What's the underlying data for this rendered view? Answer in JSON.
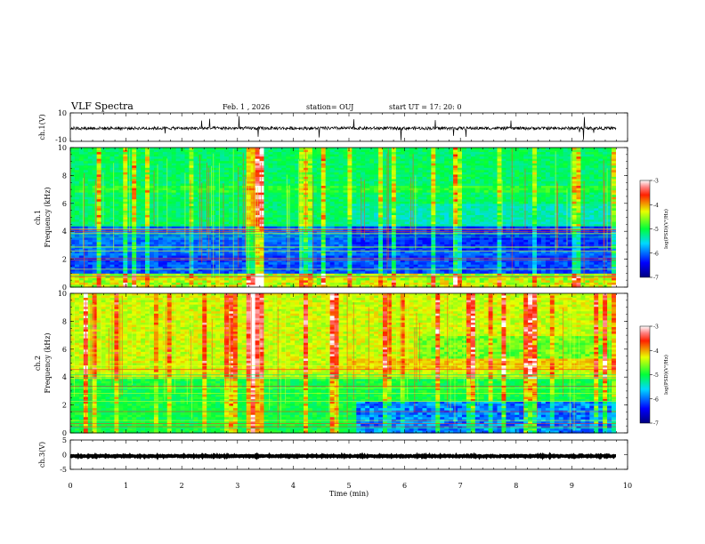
{
  "header": {
    "title": "VLF Spectra",
    "date": "Feb. 1 , 2026",
    "station": "station= OUJ",
    "start": "start  UT =   17: 20: 0"
  },
  "chart_data": [
    {
      "type": "line",
      "name": "ch1-waveform",
      "ylabel": "ch.1(V)",
      "ylim": [
        -10,
        10
      ],
      "yticks": [
        "10",
        "-10"
      ],
      "xlim": [
        0,
        10
      ],
      "baseline": -0.8
    },
    {
      "type": "heatmap",
      "name": "ch1-spectrogram",
      "ylabel_top": "ch.1",
      "ylabel": "Frequency  (kHz)",
      "ylim": [
        0,
        10
      ],
      "yticks": [
        "0",
        "2",
        "4",
        "6",
        "8",
        "10"
      ],
      "xlim": [
        0,
        10
      ],
      "colorbar": {
        "label": "log(PSD)(V²/Hz)",
        "range": [
          -7,
          -3
        ],
        "ticks": [
          "-3",
          "-4",
          "-5",
          "-6",
          "-7"
        ]
      }
    },
    {
      "type": "heatmap",
      "name": "ch2-spectrogram",
      "ylabel_top": "ch.2",
      "ylabel": "Frequency  (kHz)",
      "ylim": [
        0,
        10
      ],
      "yticks": [
        "0",
        "2",
        "4",
        "6",
        "8",
        "10"
      ],
      "xlim": [
        0,
        10
      ],
      "colorbar": {
        "label": "log(PSD)(V²/Hz)",
        "range": [
          -7,
          -3
        ],
        "ticks": [
          "-3",
          "-4",
          "-5",
          "-6",
          "-7"
        ]
      }
    },
    {
      "type": "line",
      "name": "ch3-waveform",
      "ylabel": "ch.3(V)",
      "ylim": [
        -5,
        5
      ],
      "yticks": [
        "5",
        "0",
        "-5"
      ],
      "xlim": [
        0,
        10
      ],
      "baseline": -0.5
    }
  ],
  "xaxis": {
    "label": "Time  (min)",
    "ticks": [
      "0",
      "1",
      "2",
      "3",
      "4",
      "5",
      "6",
      "7",
      "8",
      "9",
      "10"
    ]
  }
}
